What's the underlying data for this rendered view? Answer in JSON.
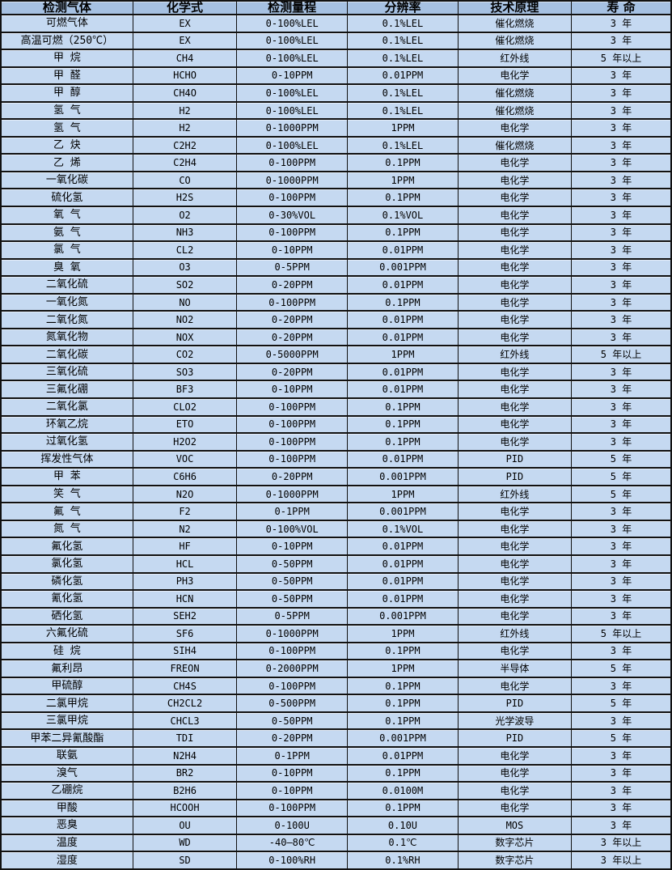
{
  "colors": {
    "header_bg": "#a6c1e2",
    "row_bg": "#c5d9f1",
    "border": "#111111",
    "text": "#000000"
  },
  "table": {
    "columns": [
      "检测气体",
      "化学式",
      "检测量程",
      "分辨率",
      "技术原理",
      "寿 命"
    ],
    "column_keys": [
      "gas-name",
      "chemical-formula",
      "detection-range",
      "resolution",
      "technology",
      "lifespan"
    ],
    "rows": [
      [
        "可燃气体",
        "EX",
        "0-100%LEL",
        "0.1%LEL",
        "催化燃烧",
        "3 年"
      ],
      [
        "高温可燃（250℃）",
        "EX",
        "0-100%LEL",
        "0.1%LEL",
        "催化燃烧",
        "3 年"
      ],
      [
        "甲 烷",
        "CH4",
        "0-100%LEL",
        "0.1%LEL",
        "红外线",
        "5 年以上"
      ],
      [
        "甲 醛",
        "HCHO",
        "0-10PPM",
        "0.01PPM",
        "电化学",
        "3 年"
      ],
      [
        "甲 醇",
        "CH4O",
        "0-100%LEL",
        "0.1%LEL",
        "催化燃烧",
        "3 年"
      ],
      [
        "氢 气",
        "H2",
        "0-100%LEL",
        "0.1%LEL",
        "催化燃烧",
        "3 年"
      ],
      [
        "氢 气",
        "H2",
        "0-1000PPM",
        "1PPM",
        "电化学",
        "3 年"
      ],
      [
        "乙 炔",
        "C2H2",
        "0-100%LEL",
        "0.1%LEL",
        "催化燃烧",
        "3 年"
      ],
      [
        "乙 烯",
        "C2H4",
        "0-100PPM",
        "0.1PPM",
        "电化学",
        "3 年"
      ],
      [
        "一氧化碳",
        "CO",
        "0-1000PPM",
        "1PPM",
        "电化学",
        "3 年"
      ],
      [
        "硫化氢",
        "H2S",
        "0-100PPM",
        "0.1PPM",
        "电化学",
        "3 年"
      ],
      [
        "氧 气",
        "O2",
        "0-30%VOL",
        "0.1%VOL",
        "电化学",
        "3 年"
      ],
      [
        "氨 气",
        "NH3",
        "0-100PPM",
        "0.1PPM",
        "电化学",
        "3 年"
      ],
      [
        "氯 气",
        "CL2",
        "0-10PPM",
        "0.01PPM",
        "电化学",
        "3 年"
      ],
      [
        "臭 氧",
        "O3",
        "0-5PPM",
        "0.001PPM",
        "电化学",
        "3 年"
      ],
      [
        "二氧化硫",
        "SO2",
        "0-20PPM",
        "0.01PPM",
        "电化学",
        "3 年"
      ],
      [
        "一氧化氮",
        "NO",
        "0-100PPM",
        "0.1PPM",
        "电化学",
        "3 年"
      ],
      [
        "二氧化氮",
        "NO2",
        "0-20PPM",
        "0.01PPM",
        "电化学",
        "3 年"
      ],
      [
        "氮氧化物",
        "NOX",
        "0-20PPM",
        "0.01PPM",
        "电化学",
        "3 年"
      ],
      [
        "二氧化碳",
        "CO2",
        "0-5000PPM",
        "1PPM",
        "红外线",
        "5 年以上"
      ],
      [
        "三氧化硫",
        "SO3",
        "0-20PPM",
        "0.01PPM",
        "电化学",
        "3 年"
      ],
      [
        "三氟化硼",
        "BF3",
        "0-10PPM",
        "0.01PPM",
        "电化学",
        "3 年"
      ],
      [
        "二氧化氯",
        "CLO2",
        "0-100PPM",
        "0.1PPM",
        "电化学",
        "3 年"
      ],
      [
        "环氧乙烷",
        "ETO",
        "0-100PPM",
        "0.1PPM",
        "电化学",
        "3 年"
      ],
      [
        "过氧化氢",
        "H2O2",
        "0-100PPM",
        "0.1PPM",
        "电化学",
        "3 年"
      ],
      [
        "挥发性气体",
        "VOC",
        "0-100PPM",
        "0.01PPM",
        "PID",
        "5 年"
      ],
      [
        "甲 苯",
        "C6H6",
        "0-20PPM",
        "0.001PPM",
        "PID",
        "5 年"
      ],
      [
        "笑 气",
        "N2O",
        "0-1000PPM",
        "1PPM",
        "红外线",
        "5 年"
      ],
      [
        "氟 气",
        "F2",
        "0-1PPM",
        "0.001PPM",
        "电化学",
        "3 年"
      ],
      [
        "氮 气",
        "N2",
        "0-100%VOL",
        "0.1%VOL",
        "电化学",
        "3 年"
      ],
      [
        "氟化氢",
        "HF",
        "0-10PPM",
        "0.01PPM",
        "电化学",
        "3 年"
      ],
      [
        "氯化氢",
        "HCL",
        "0-50PPM",
        "0.01PPM",
        "电化学",
        "3 年"
      ],
      [
        "磷化氢",
        "PH3",
        "0-50PPM",
        "0.01PPM",
        "电化学",
        "3 年"
      ],
      [
        "氰化氢",
        "HCN",
        "0-50PPM",
        "0.01PPM",
        "电化学",
        "3 年"
      ],
      [
        "硒化氢",
        "SEH2",
        "0-5PPM",
        "0.001PPM",
        "电化学",
        "3 年"
      ],
      [
        "六氟化硫",
        "SF6",
        "0-1000PPM",
        "1PPM",
        "红外线",
        "5 年以上"
      ],
      [
        "硅 烷",
        "SIH4",
        "0-100PPM",
        "0.1PPM",
        "电化学",
        "3 年"
      ],
      [
        "氟利昂",
        "FREON",
        "0-2000PPM",
        "1PPM",
        "半导体",
        "5 年"
      ],
      [
        "甲硫醇",
        "CH4S",
        "0-100PPM",
        "0.1PPM",
        "电化学",
        "3 年"
      ],
      [
        "二氯甲烷",
        "CH2CL2",
        "0-500PPM",
        "0.1PPM",
        "PID",
        "5 年"
      ],
      [
        "三氯甲烷",
        "CHCL3",
        "0-50PPM",
        "0.1PPM",
        "光学波导",
        "3 年"
      ],
      [
        "甲苯二异氰酸酯",
        "TDI",
        "0-20PPM",
        "0.001PPM",
        "PID",
        "5 年"
      ],
      [
        "联氨",
        "N2H4",
        "0-1PPM",
        "0.01PPM",
        "电化学",
        "3 年"
      ],
      [
        "溴气",
        "BR2",
        "0-10PPM",
        "0.1PPM",
        "电化学",
        "3 年"
      ],
      [
        "乙硼烷",
        "B2H6",
        "0-10PPM",
        "0.0100M",
        "电化学",
        "3 年"
      ],
      [
        "甲酸",
        "HCOOH",
        "0-100PPM",
        "0.1PPM",
        "电化学",
        "3 年"
      ],
      [
        "恶臭",
        "OU",
        "0-100U",
        "0.10U",
        "MOS",
        "3 年"
      ],
      [
        "温度",
        "WD",
        "-40—80℃",
        "0.1℃",
        "数字芯片",
        "3 年以上"
      ],
      [
        "湿度",
        "SD",
        "0-100%RH",
        "0.1%RH",
        "数字芯片",
        "3 年以上"
      ]
    ]
  }
}
